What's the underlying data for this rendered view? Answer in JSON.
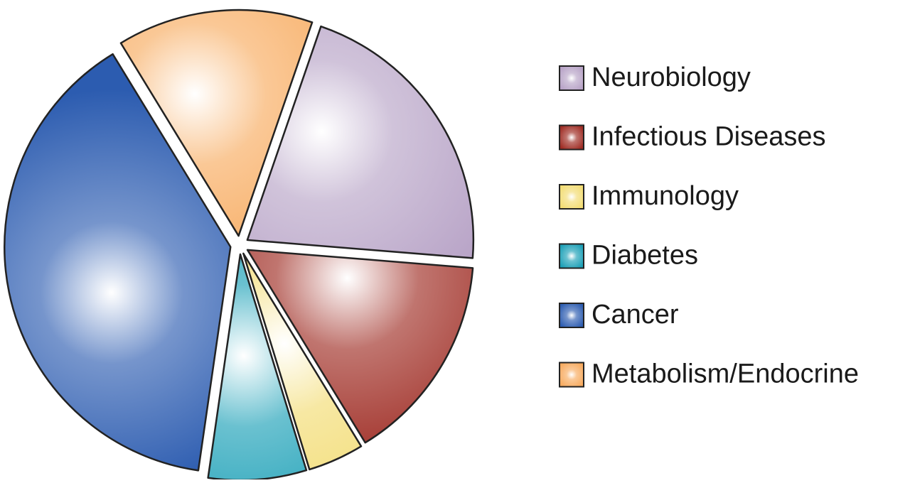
{
  "chart_data": {
    "type": "pie",
    "categories": [
      "Neurobiology",
      "Infectious Diseases",
      "Immunology",
      "Diabetes",
      "Cancer",
      "Metabolism/Endocrine"
    ],
    "values": [
      21,
      15,
      4,
      7,
      39,
      14
    ],
    "colors": [
      "#b7a2c6",
      "#9e2a22",
      "#f2dc72",
      "#1a9fb6",
      "#2c5cb0",
      "#f7aa5e"
    ],
    "legend": "right"
  }
}
